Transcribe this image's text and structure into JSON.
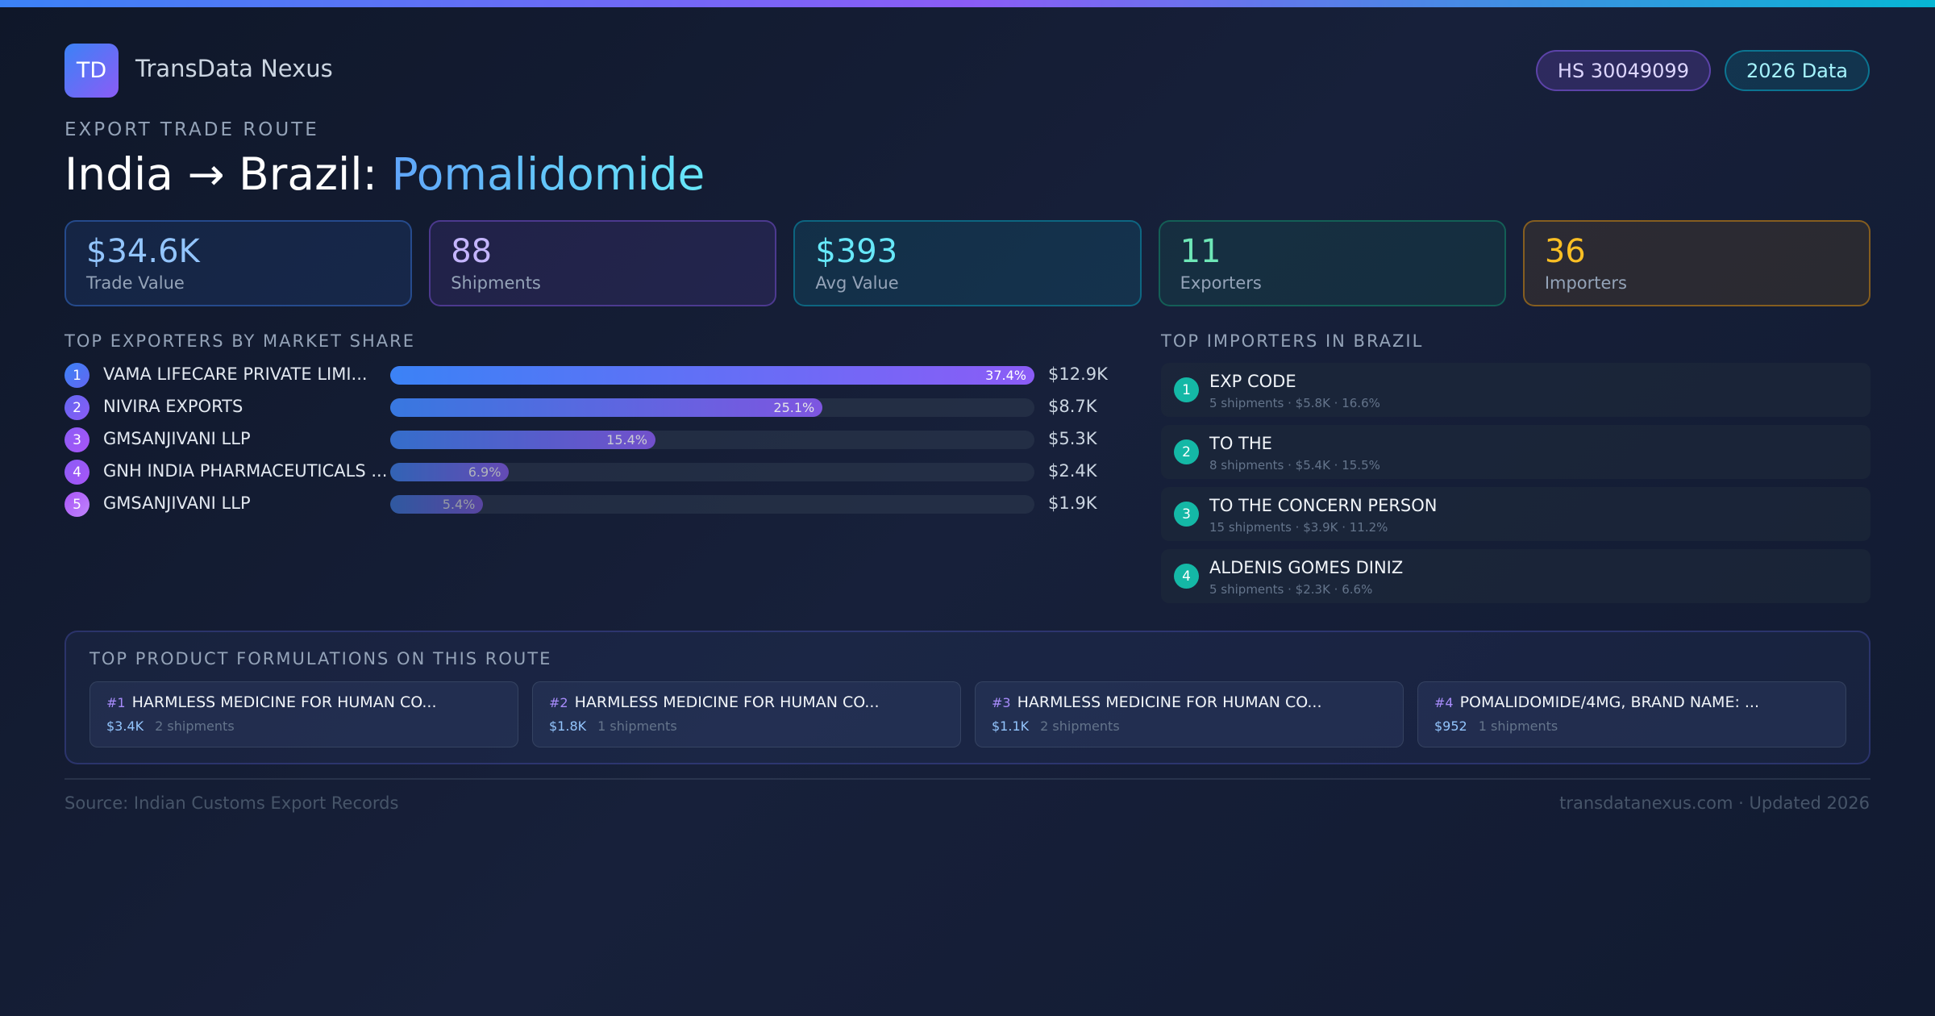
{
  "header": {
    "logo": "TD",
    "brand": "TransData Nexus",
    "badges": [
      "HS 30049099",
      "2026 Data"
    ]
  },
  "route": {
    "eyebrow": "EXPORT TRADE ROUTE",
    "title_prefix": "India → Brazil:",
    "product": "Pomalidomide"
  },
  "kpis": [
    {
      "value": "$34.6K",
      "label": "Trade Value"
    },
    {
      "value": "88",
      "label": "Shipments"
    },
    {
      "value": "$393",
      "label": "Avg Value"
    },
    {
      "value": "11",
      "label": "Exporters"
    },
    {
      "value": "36",
      "label": "Importers"
    }
  ],
  "exporters": {
    "title": "TOP EXPORTERS BY MARKET SHARE",
    "rows": [
      {
        "rank": "1",
        "name": "VAMA LIFECARE PRIVATE LIMI...",
        "share": {
          "value": 37.4,
          "label": "37.4%"
        },
        "amount": "$12.9K"
      },
      {
        "rank": "2",
        "name": "NIVIRA EXPORTS",
        "share": {
          "value": 25.1,
          "label": "25.1%"
        },
        "amount": "$8.7K"
      },
      {
        "rank": "3",
        "name": "GMSANJIVANI LLP",
        "share": {
          "value": 15.4,
          "label": "15.4%"
        },
        "amount": "$5.3K"
      },
      {
        "rank": "4",
        "name": "GNH INDIA PHARMACEUTICALS ...",
        "share": {
          "value": 6.9,
          "label": "6.9%"
        },
        "amount": "$2.4K"
      },
      {
        "rank": "5",
        "name": "GMSANJIVANI LLP",
        "share": {
          "value": 5.4,
          "label": "5.4%"
        },
        "amount": "$1.9K"
      }
    ]
  },
  "importers": {
    "title": "TOP IMPORTERS IN BRAZIL",
    "rows": [
      {
        "rank": "1",
        "name": "EXP CODE",
        "meta": "5 shipments · $5.8K · 16.6%"
      },
      {
        "rank": "2",
        "name": "TO THE",
        "meta": "8 shipments · $5.4K · 15.5%"
      },
      {
        "rank": "3",
        "name": "TO THE CONCERN PERSON",
        "meta": "15 shipments · $3.9K · 11.2%"
      },
      {
        "rank": "4",
        "name": "ALDENIS GOMES DINIZ",
        "meta": "5 shipments · $2.3K · 6.6%"
      }
    ]
  },
  "formulations": {
    "title": "TOP PRODUCT FORMULATIONS ON THIS ROUTE",
    "items": [
      {
        "rank": "#1",
        "name": "HARMLESS MEDICINE FOR HUMAN CO...",
        "value": "$3.4K",
        "shipments": "2 shipments"
      },
      {
        "rank": "#2",
        "name": "HARMLESS MEDICINE FOR HUMAN CO...",
        "value": "$1.8K",
        "shipments": "1 shipments"
      },
      {
        "rank": "#3",
        "name": "HARMLESS MEDICINE FOR HUMAN CO...",
        "value": "$1.1K",
        "shipments": "2 shipments"
      },
      {
        "rank": "#4",
        "name": "POMALIDOMIDE/4MG, BRAND NAME: ...",
        "value": "$952",
        "shipments": "1 shipments"
      }
    ]
  },
  "footer": {
    "source": "Source: Indian Customs Export Records",
    "site": "transdatanexus.com · Updated 2026"
  }
}
